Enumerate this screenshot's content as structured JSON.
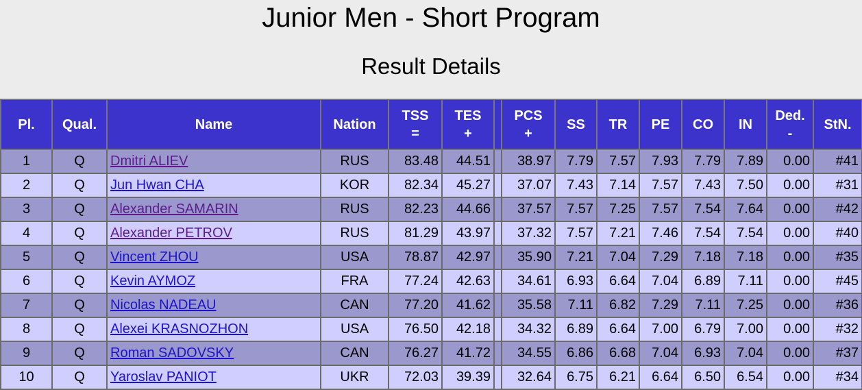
{
  "title": "Junior Men - Short Program",
  "subtitle": "Result Details",
  "columns": {
    "pl": "Pl.",
    "qual": "Qual.",
    "name": "Name",
    "nation": "Nation",
    "tss": "TSS",
    "tss_sym": "=",
    "tes": "TES",
    "tes_sym": "+",
    "pcs": "PCS",
    "pcs_sym": "+",
    "ss": "SS",
    "tr": "TR",
    "pe": "PE",
    "co": "CO",
    "in": "IN",
    "ded": "Ded.",
    "ded_sym": "-",
    "stn": "StN."
  },
  "rows": [
    {
      "pl": "1",
      "qual": "Q",
      "name": "Dmitri ALIEV",
      "nation": "RUS",
      "tss": "83.48",
      "tes": "44.51",
      "pcs": "38.97",
      "ss": "7.79",
      "tr": "7.57",
      "pe": "7.93",
      "co": "7.79",
      "in": "7.89",
      "ded": "0.00",
      "stn": "#41"
    },
    {
      "pl": "2",
      "qual": "Q",
      "name": "Jun Hwan CHA",
      "nation": "KOR",
      "tss": "82.34",
      "tes": "45.27",
      "pcs": "37.07",
      "ss": "7.43",
      "tr": "7.14",
      "pe": "7.57",
      "co": "7.43",
      "in": "7.50",
      "ded": "0.00",
      "stn": "#31"
    },
    {
      "pl": "3",
      "qual": "Q",
      "name": "Alexander SAMARIN",
      "nation": "RUS",
      "tss": "82.23",
      "tes": "44.66",
      "pcs": "37.57",
      "ss": "7.57",
      "tr": "7.25",
      "pe": "7.57",
      "co": "7.54",
      "in": "7.64",
      "ded": "0.00",
      "stn": "#42"
    },
    {
      "pl": "4",
      "qual": "Q",
      "name": "Alexander PETROV",
      "nation": "RUS",
      "tss": "81.29",
      "tes": "43.97",
      "pcs": "37.32",
      "ss": "7.57",
      "tr": "7.21",
      "pe": "7.46",
      "co": "7.54",
      "in": "7.54",
      "ded": "0.00",
      "stn": "#40"
    },
    {
      "pl": "5",
      "qual": "Q",
      "name": "Vincent ZHOU",
      "nation": "USA",
      "tss": "78.87",
      "tes": "42.97",
      "pcs": "35.90",
      "ss": "7.21",
      "tr": "7.04",
      "pe": "7.29",
      "co": "7.18",
      "in": "7.18",
      "ded": "0.00",
      "stn": "#35"
    },
    {
      "pl": "6",
      "qual": "Q",
      "name": "Kevin AYMOZ",
      "nation": "FRA",
      "tss": "77.24",
      "tes": "42.63",
      "pcs": "34.61",
      "ss": "6.93",
      "tr": "6.64",
      "pe": "7.04",
      "co": "6.89",
      "in": "7.11",
      "ded": "0.00",
      "stn": "#45"
    },
    {
      "pl": "7",
      "qual": "Q",
      "name": "Nicolas NADEAU",
      "nation": "CAN",
      "tss": "77.20",
      "tes": "41.62",
      "pcs": "35.58",
      "ss": "7.11",
      "tr": "6.82",
      "pe": "7.29",
      "co": "7.11",
      "in": "7.25",
      "ded": "0.00",
      "stn": "#36"
    },
    {
      "pl": "8",
      "qual": "Q",
      "name": "Alexei KRASNOZHON",
      "nation": "USA",
      "tss": "76.50",
      "tes": "42.18",
      "pcs": "34.32",
      "ss": "6.89",
      "tr": "6.64",
      "pe": "7.00",
      "co": "6.79",
      "in": "7.00",
      "ded": "0.00",
      "stn": "#32"
    },
    {
      "pl": "9",
      "qual": "Q",
      "name": "Roman SADOVSKY",
      "nation": "CAN",
      "tss": "76.27",
      "tes": "41.72",
      "pcs": "34.55",
      "ss": "6.86",
      "tr": "6.68",
      "pe": "7.04",
      "co": "6.93",
      "in": "7.04",
      "ded": "0.00",
      "stn": "#37"
    },
    {
      "pl": "10",
      "qual": "Q",
      "name": "Yaroslav PANIOT",
      "nation": "UKR",
      "tss": "72.03",
      "tes": "39.39",
      "pcs": "32.64",
      "ss": "6.75",
      "tr": "6.21",
      "pe": "6.64",
      "co": "6.50",
      "in": "6.54",
      "ded": "0.00",
      "stn": "#34"
    }
  ],
  "colors": {
    "header_bg": "#3c32cc",
    "row_odd": "#9a98cc",
    "row_even": "#d0cefe",
    "link": "#1c14cc",
    "link_visited": "#5c1c8e"
  }
}
